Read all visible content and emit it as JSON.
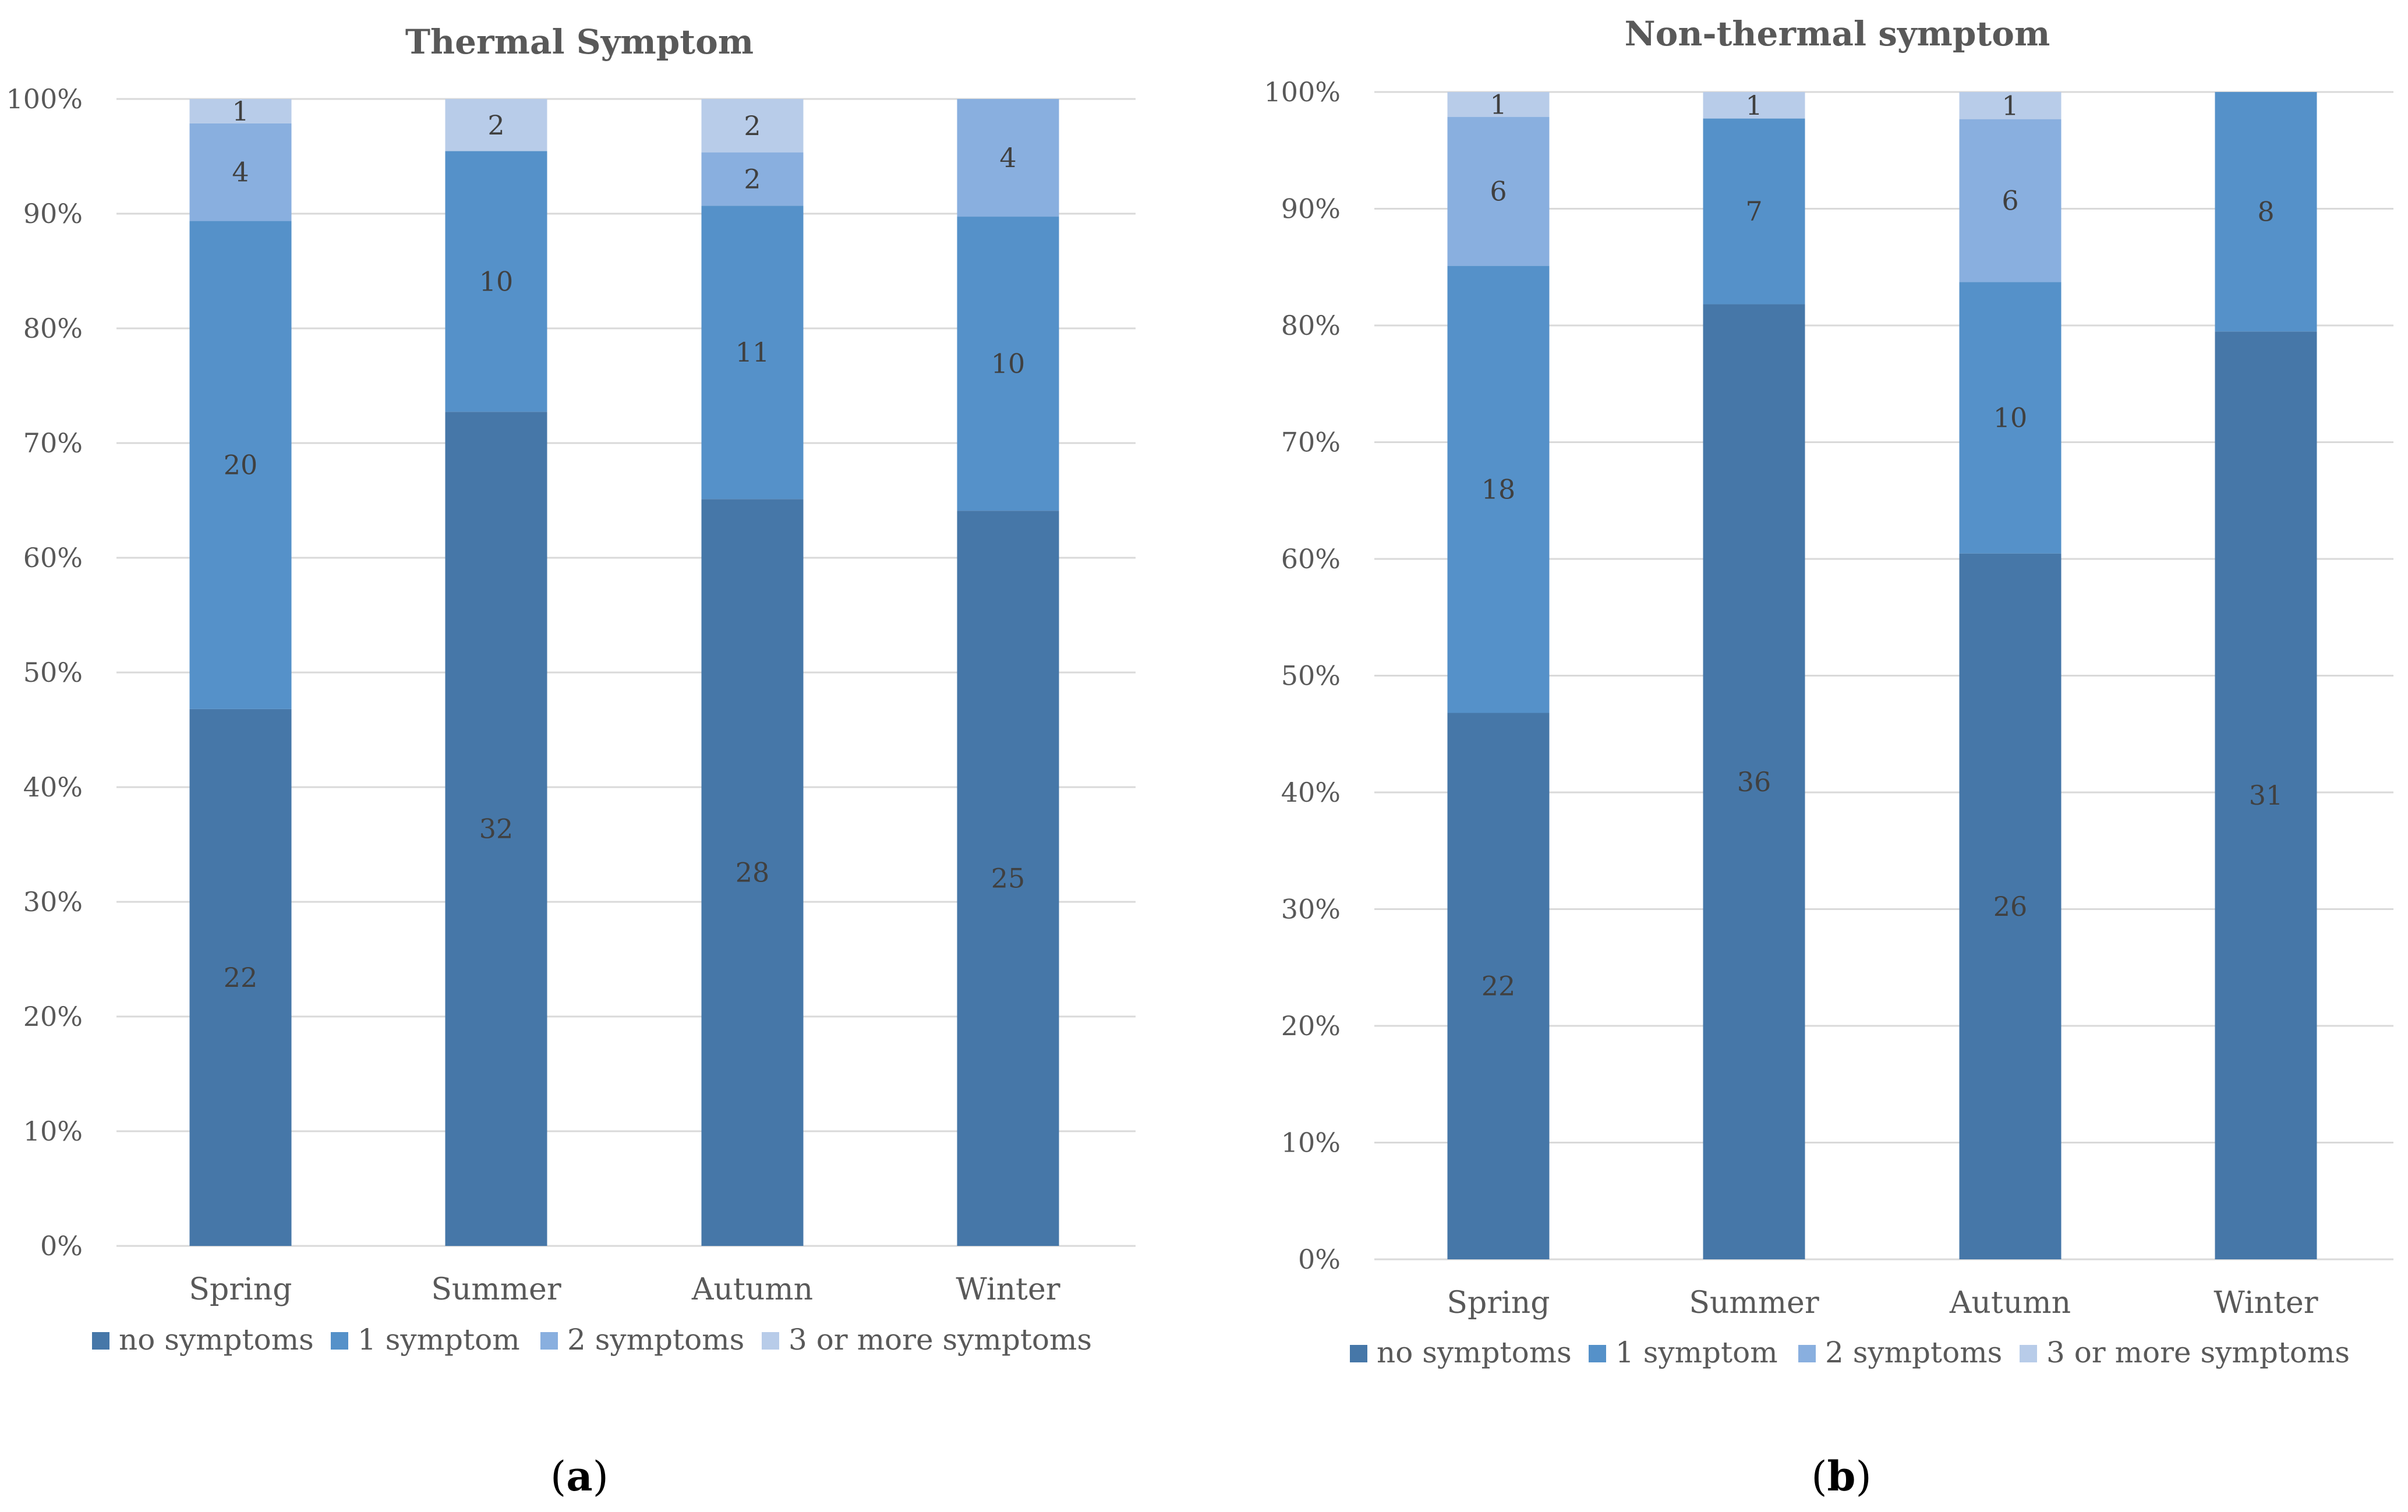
{
  "colors": {
    "series": [
      "#4677a8",
      "#5591c9",
      "#89afdf",
      "#b8cce9"
    ],
    "grid": "#d9d9d9",
    "text": "#595959"
  },
  "chart_data": [
    {
      "type": "bar",
      "stacked": true,
      "percent": true,
      "title": "Thermal Symptom",
      "caption_letter": "a",
      "categories": [
        "Spring",
        "Summer",
        "Autumn",
        "Winter"
      ],
      "series": [
        {
          "name": "no symptoms",
          "values": [
            22,
            32,
            28,
            25
          ]
        },
        {
          "name": "1 symptom",
          "values": [
            20,
            10,
            11,
            10
          ]
        },
        {
          "name": "2 symptoms",
          "values": [
            4,
            0,
            2,
            4
          ]
        },
        {
          "name": "3 or more symptoms",
          "values": [
            1,
            2,
            2,
            0
          ]
        }
      ],
      "yticks": [
        "0%",
        "10%",
        "20%",
        "30%",
        "40%",
        "50%",
        "60%",
        "70%",
        "80%",
        "90%",
        "100%"
      ],
      "ylim": [
        0,
        100
      ],
      "grid": true,
      "legend_position": "bottom"
    },
    {
      "type": "bar",
      "stacked": true,
      "percent": true,
      "title": "Non-thermal symptom",
      "caption_letter": "b",
      "categories": [
        "Spring",
        "Summer",
        "Autumn",
        "Winter"
      ],
      "series": [
        {
          "name": "no symptoms",
          "values": [
            22,
            36,
            26,
            31
          ]
        },
        {
          "name": "1 symptom",
          "values": [
            18,
            7,
            10,
            8
          ]
        },
        {
          "name": "2 symptoms",
          "values": [
            6,
            0,
            6,
            0
          ]
        },
        {
          "name": "3 or more symptoms",
          "values": [
            1,
            1,
            1,
            0
          ]
        }
      ],
      "yticks": [
        "0%",
        "10%",
        "20%",
        "30%",
        "40%",
        "50%",
        "60%",
        "70%",
        "80%",
        "90%",
        "100%"
      ],
      "ylim": [
        0,
        100
      ],
      "grid": true,
      "legend_position": "bottom"
    }
  ]
}
